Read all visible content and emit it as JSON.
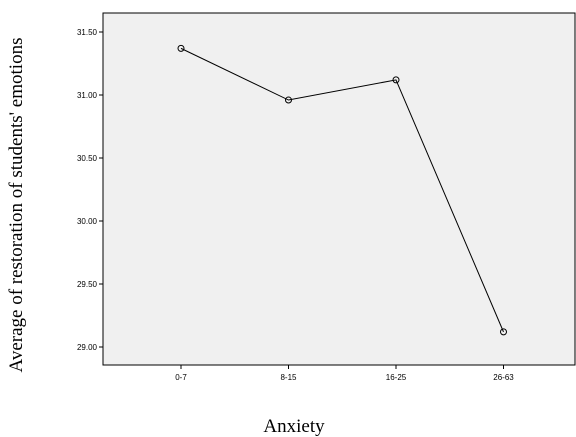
{
  "chart_data": {
    "type": "line",
    "categories": [
      "0-7",
      "8-15",
      "16-25",
      "26-63"
    ],
    "values": [
      31.37,
      30.96,
      31.12,
      29.12
    ],
    "xlabel": "Anxiety",
    "ylabel": "Average of restoration of students' emotions",
    "ylim": [
      28.9,
      31.65
    ],
    "yticks": [
      "29.00",
      "29.50",
      "30.00",
      "30.50",
      "31.00",
      "31.50"
    ],
    "grid": false,
    "markers": "open-circle",
    "colors": {
      "plot_background": "#f0f0f0",
      "line": "#000000"
    }
  }
}
